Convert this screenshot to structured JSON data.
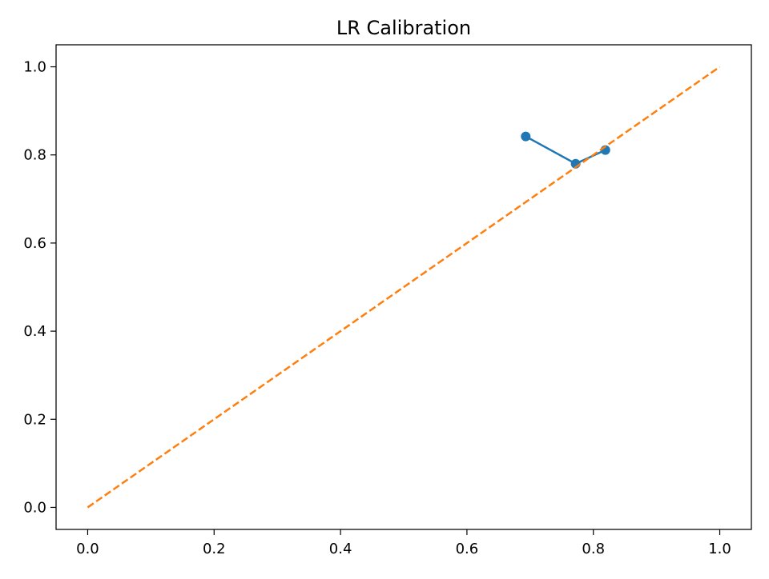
{
  "chart_data": {
    "type": "line",
    "title": "LR Calibration",
    "xlabel": "",
    "ylabel": "",
    "xlim": [
      -0.05,
      1.05
    ],
    "ylim": [
      -0.05,
      1.05
    ],
    "xticks": [
      0.0,
      0.2,
      0.4,
      0.6,
      0.8,
      1.0
    ],
    "yticks": [
      0.0,
      0.2,
      0.4,
      0.6,
      0.8,
      1.0
    ],
    "xtick_labels": [
      "0.0",
      "0.2",
      "0.4",
      "0.6",
      "0.8",
      "1.0"
    ],
    "ytick_labels": [
      "0.0",
      "0.2",
      "0.4",
      "0.6",
      "0.8",
      "1.0"
    ],
    "grid": false,
    "legend": "none",
    "series": [
      {
        "style": "solid-with-markers",
        "color": "#1f77b4",
        "x": [
          0.693,
          0.772,
          0.819
        ],
        "y": [
          0.842,
          0.78,
          0.811
        ]
      },
      {
        "style": "dashed",
        "color": "#ff7f0e",
        "x": [
          0.0,
          1.0
        ],
        "y": [
          0.0,
          1.0
        ]
      }
    ]
  }
}
